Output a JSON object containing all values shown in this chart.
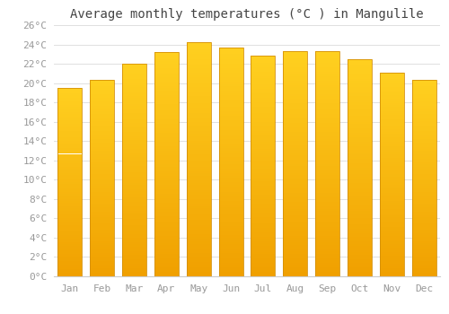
{
  "title": "Average monthly temperatures (°C ) in Mangulile",
  "months": [
    "Jan",
    "Feb",
    "Mar",
    "Apr",
    "May",
    "Jun",
    "Jul",
    "Aug",
    "Sep",
    "Oct",
    "Nov",
    "Dec"
  ],
  "values": [
    19.5,
    20.3,
    22.0,
    23.2,
    24.2,
    23.7,
    22.8,
    23.3,
    23.3,
    22.5,
    21.1,
    20.3
  ],
  "bar_color_top": "#FFCC00",
  "bar_color_bottom": "#F0A000",
  "bar_edge_color": "#D4900A",
  "ylim": [
    0,
    26
  ],
  "yticks": [
    0,
    2,
    4,
    6,
    8,
    10,
    12,
    14,
    16,
    18,
    20,
    22,
    24,
    26
  ],
  "grid_color": "#e0e0e0",
  "bg_color": "#ffffff",
  "title_fontsize": 10,
  "tick_fontsize": 8,
  "title_font_family": "monospace",
  "tick_font_family": "monospace",
  "tick_label_color": "#999999"
}
